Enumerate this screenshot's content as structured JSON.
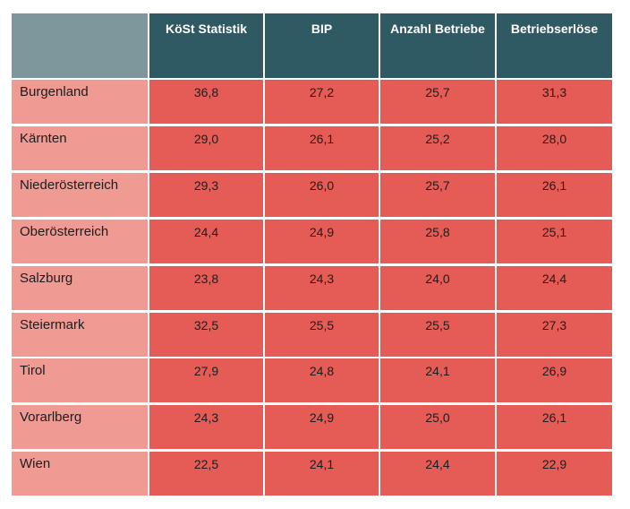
{
  "chart_data": {
    "type": "table",
    "columns": [
      "KöSt Statistik",
      "BIP",
      "Anzahl Betriebe",
      "Betriebserlöse"
    ],
    "rows": [
      {
        "label": "Burgenland",
        "values": [
          "36,8",
          "27,2",
          "25,7",
          "31,3"
        ]
      },
      {
        "label": "Kärnten",
        "values": [
          "29,0",
          "26,1",
          "25,2",
          "28,0"
        ]
      },
      {
        "label": "Niederösterreich",
        "values": [
          "29,3",
          "26,0",
          "25,7",
          "26,1"
        ]
      },
      {
        "label": "Oberösterreich",
        "values": [
          "24,4",
          "24,9",
          "25,8",
          "25,1"
        ]
      },
      {
        "label": "Salzburg",
        "values": [
          "23,8",
          "24,3",
          "24,0",
          "24,4"
        ]
      },
      {
        "label": "Steiermark",
        "values": [
          "32,5",
          "25,5",
          "25,5",
          "27,3"
        ]
      },
      {
        "label": "Tirol",
        "values": [
          "27,9",
          "24,8",
          "24,1",
          "26,9"
        ]
      },
      {
        "label": "Vorarlberg",
        "values": [
          "24,3",
          "24,9",
          "25,0",
          "26,1"
        ]
      },
      {
        "label": "Wien",
        "values": [
          "22,5",
          "24,1",
          "24,4",
          "22,9"
        ]
      }
    ]
  },
  "colors": {
    "header_bg": "#2f5a63",
    "corner_bg": "#7e979c",
    "label_bg": "#ef9a93",
    "value_bg": "#e55b55"
  }
}
